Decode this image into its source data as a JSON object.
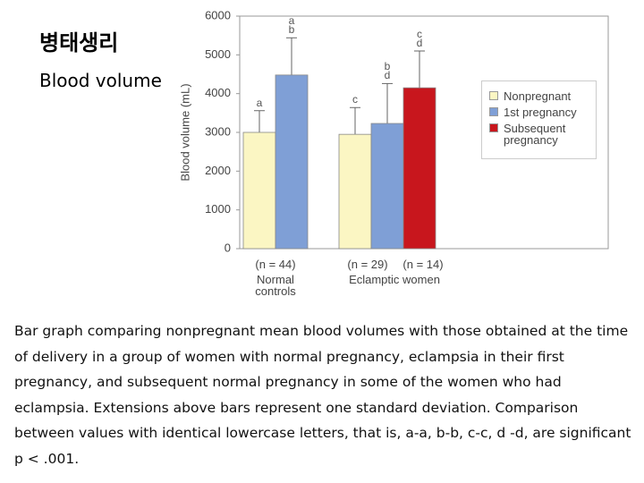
{
  "header": {
    "title": "병태생리",
    "subtitle": "Blood volume"
  },
  "chart_data": {
    "type": "bar",
    "y_label": "Blood volume (mL)",
    "categories": [
      "Normal controls",
      "Eclamptic women"
    ],
    "sample_sizes": [
      "(n = 44)",
      "(n = 29)",
      "(n = 14)"
    ],
    "series": [
      {
        "name": "Nonpregnant",
        "color": "#fbf6c3",
        "values": [
          3000,
          2950
        ],
        "errors": [
          560,
          690
        ],
        "letters": [
          "a",
          "c"
        ]
      },
      {
        "name": "1st pregnancy",
        "color": "#7f9fd6",
        "values": [
          4480,
          3230
        ],
        "errors": [
          960,
          1030
        ],
        "letters": [
          "a b",
          "b d"
        ]
      },
      {
        "name": "Subsequent pregnancy",
        "color": "#c8161d",
        "values": [
          null,
          4150
        ],
        "errors": [
          null,
          950
        ],
        "letters": [
          null,
          "c d"
        ]
      }
    ],
    "ylim": [
      0,
      6000
    ],
    "yticks": [
      0,
      1000,
      2000,
      3000,
      4000,
      5000,
      6000
    ],
    "grid": false
  },
  "caption": "Bar graph comparing nonpregnant mean blood volumes with those obtained at the time of delivery in a group of women with normal pregnancy, eclampsia in their first pregnancy, and subsequent normal pregnancy in some of the women who had eclampsia. Extensions above bars represent one standard deviation. Comparison between values with identical lowercase letters, that is, a-a, b-b, c-c, d -d, are significant p < .001."
}
